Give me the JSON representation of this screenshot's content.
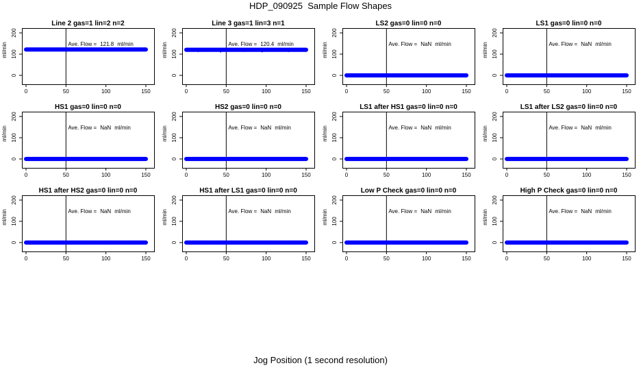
{
  "figure": {
    "title": "HDP_090925  Sample Flow Shapes",
    "xlabel": "Jog Position (1 second resolution)",
    "colors": {
      "points": "#0000ff",
      "axis": "#000000",
      "background": "#ffffff"
    }
  },
  "chart_data": [
    {
      "type": "scatter",
      "title": "Line 2 gas=1 lin=2 n=2",
      "ylabel": "ml/min",
      "annotation_label": "Ave. Flow =",
      "annotation_value": "121.8",
      "annotation_unit": "ml/min",
      "xlim": [
        0,
        150
      ],
      "ylim": [
        0,
        200
      ],
      "xticks": [
        0,
        50,
        100,
        150
      ],
      "xtick_labels": [
        "0",
        "50",
        "100",
        "150"
      ],
      "yticks": [
        0,
        100,
        200
      ],
      "ytick_labels": [
        "0",
        "100",
        "200"
      ],
      "vline_x": 50,
      "series": [
        {
          "name": "flow",
          "x_range": [
            0,
            150
          ],
          "step": 1,
          "y": 121.8,
          "outliers": []
        }
      ]
    },
    {
      "type": "scatter",
      "title": "Line 3 gas=1 lin=3 n=1",
      "ylabel": "ml/min",
      "annotation_label": "Ave. Flow =",
      "annotation_value": "120.4",
      "annotation_unit": "ml/min",
      "xlim": [
        0,
        150
      ],
      "ylim": [
        0,
        200
      ],
      "xticks": [
        0,
        50,
        100,
        150
      ],
      "xtick_labels": [
        "0",
        "50",
        "100",
        "150"
      ],
      "yticks": [
        0,
        100,
        200
      ],
      "ytick_labels": [
        "0",
        "100",
        "200"
      ],
      "vline_x": 50,
      "series": [
        {
          "name": "flow",
          "x_range": [
            0,
            150
          ],
          "step": 1,
          "y": 120.4,
          "outliers": [
            [
              15,
              112
            ],
            [
              43,
              110
            ],
            [
              72,
              113
            ],
            [
              95,
              111
            ],
            [
              128,
              112
            ]
          ]
        }
      ]
    },
    {
      "type": "scatter",
      "title": "LS2 gas=0 lin=0 n=0",
      "ylabel": "ml/min",
      "annotation_label": "Ave. Flow =",
      "annotation_value": "NaN",
      "annotation_unit": "ml/min",
      "xlim": [
        0,
        150
      ],
      "ylim": [
        0,
        200
      ],
      "xticks": [
        0,
        50,
        100,
        150
      ],
      "xtick_labels": [
        "0",
        "50",
        "100",
        "150"
      ],
      "yticks": [
        0,
        100,
        200
      ],
      "ytick_labels": [
        "0",
        "100",
        "200"
      ],
      "vline_x": 50,
      "series": [
        {
          "name": "flow",
          "x_range": [
            0,
            150
          ],
          "step": 1,
          "y": 0,
          "outliers": []
        }
      ]
    },
    {
      "type": "scatter",
      "title": "LS1 gas=0 lin=0 n=0",
      "ylabel": "ml/min",
      "annotation_label": "Ave. Flow =",
      "annotation_value": "NaN",
      "annotation_unit": "ml/min",
      "xlim": [
        0,
        150
      ],
      "ylim": [
        0,
        200
      ],
      "xticks": [
        0,
        50,
        100,
        150
      ],
      "xtick_labels": [
        "0",
        "50",
        "100",
        "150"
      ],
      "yticks": [
        0,
        100,
        200
      ],
      "ytick_labels": [
        "0",
        "100",
        "200"
      ],
      "vline_x": 50,
      "series": [
        {
          "name": "flow",
          "x_range": [
            0,
            150
          ],
          "step": 1,
          "y": 0,
          "outliers": []
        }
      ]
    },
    {
      "type": "scatter",
      "title": "HS1 gas=0 lin=0 n=0",
      "ylabel": "ml/min",
      "annotation_label": "Ave. Flow =",
      "annotation_value": "NaN",
      "annotation_unit": "ml/min",
      "xlim": [
        0,
        150
      ],
      "ylim": [
        0,
        200
      ],
      "xticks": [
        0,
        50,
        100,
        150
      ],
      "xtick_labels": [
        "0",
        "50",
        "100",
        "150"
      ],
      "yticks": [
        0,
        100,
        200
      ],
      "ytick_labels": [
        "0",
        "100",
        "200"
      ],
      "vline_x": 50,
      "series": [
        {
          "name": "flow",
          "x_range": [
            0,
            150
          ],
          "step": 1,
          "y": 0,
          "outliers": []
        }
      ]
    },
    {
      "type": "scatter",
      "title": "HS2 gas=0 lin=0 n=0",
      "ylabel": "ml/min",
      "annotation_label": "Ave. Flow =",
      "annotation_value": "NaN",
      "annotation_unit": "ml/min",
      "xlim": [
        0,
        150
      ],
      "ylim": [
        0,
        200
      ],
      "xticks": [
        0,
        50,
        100,
        150
      ],
      "xtick_labels": [
        "0",
        "50",
        "100",
        "150"
      ],
      "yticks": [
        0,
        100,
        200
      ],
      "ytick_labels": [
        "0",
        "100",
        "200"
      ],
      "vline_x": 50,
      "series": [
        {
          "name": "flow",
          "x_range": [
            0,
            150
          ],
          "step": 1,
          "y": 0,
          "outliers": []
        }
      ]
    },
    {
      "type": "scatter",
      "title": "LS1 after HS1 gas=0 lin=0 n=0",
      "ylabel": "ml/min",
      "annotation_label": "Ave. Flow =",
      "annotation_value": "NaN",
      "annotation_unit": "ml/min",
      "xlim": [
        0,
        150
      ],
      "ylim": [
        0,
        200
      ],
      "xticks": [
        0,
        50,
        100,
        150
      ],
      "xtick_labels": [
        "0",
        "50",
        "100",
        "150"
      ],
      "yticks": [
        0,
        100,
        200
      ],
      "ytick_labels": [
        "0",
        "100",
        "200"
      ],
      "vline_x": 50,
      "series": [
        {
          "name": "flow",
          "x_range": [
            0,
            150
          ],
          "step": 1,
          "y": 0,
          "outliers": []
        }
      ]
    },
    {
      "type": "scatter",
      "title": "LS1 after LS2 gas=0 lin=0 n=0",
      "ylabel": "ml/min",
      "annotation_label": "Ave. Flow =",
      "annotation_value": "NaN",
      "annotation_unit": "ml/min",
      "xlim": [
        0,
        150
      ],
      "ylim": [
        0,
        200
      ],
      "xticks": [
        0,
        50,
        100,
        150
      ],
      "xtick_labels": [
        "0",
        "50",
        "100",
        "150"
      ],
      "yticks": [
        0,
        100,
        200
      ],
      "ytick_labels": [
        "0",
        "100",
        "200"
      ],
      "vline_x": 50,
      "series": [
        {
          "name": "flow",
          "x_range": [
            0,
            150
          ],
          "step": 1,
          "y": 0,
          "outliers": []
        }
      ]
    },
    {
      "type": "scatter",
      "title": "HS1 after HS2 gas=0 lin=0 n=0",
      "ylabel": "ml/min",
      "annotation_label": "Ave. Flow =",
      "annotation_value": "NaN",
      "annotation_unit": "ml/min",
      "xlim": [
        0,
        150
      ],
      "ylim": [
        0,
        200
      ],
      "xticks": [
        0,
        50,
        100,
        150
      ],
      "xtick_labels": [
        "0",
        "50",
        "100",
        "150"
      ],
      "yticks": [
        0,
        100,
        200
      ],
      "ytick_labels": [
        "0",
        "100",
        "200"
      ],
      "vline_x": 50,
      "series": [
        {
          "name": "flow",
          "x_range": [
            0,
            150
          ],
          "step": 1,
          "y": 0,
          "outliers": []
        }
      ]
    },
    {
      "type": "scatter",
      "title": "HS1 after LS1 gas=0 lin=0 n=0",
      "ylabel": "ml/min",
      "annotation_label": "Ave. Flow =",
      "annotation_value": "NaN",
      "annotation_unit": "ml/min",
      "xlim": [
        0,
        150
      ],
      "ylim": [
        0,
        200
      ],
      "xticks": [
        0,
        50,
        100,
        150
      ],
      "xtick_labels": [
        "0",
        "50",
        "100",
        "150"
      ],
      "yticks": [
        0,
        100,
        200
      ],
      "ytick_labels": [
        "0",
        "100",
        "200"
      ],
      "vline_x": 50,
      "series": [
        {
          "name": "flow",
          "x_range": [
            0,
            150
          ],
          "step": 1,
          "y": 0,
          "outliers": []
        }
      ]
    },
    {
      "type": "scatter",
      "title": "Low P Check gas=0 lin=0 n=0",
      "ylabel": "ml/min",
      "annotation_label": "Ave. Flow =",
      "annotation_value": "NaN",
      "annotation_unit": "ml/min",
      "xlim": [
        0,
        150
      ],
      "ylim": [
        0,
        200
      ],
      "xticks": [
        0,
        50,
        100,
        150
      ],
      "xtick_labels": [
        "0",
        "50",
        "100",
        "150"
      ],
      "yticks": [
        0,
        100,
        200
      ],
      "ytick_labels": [
        "0",
        "100",
        "200"
      ],
      "vline_x": 50,
      "series": [
        {
          "name": "flow",
          "x_range": [
            0,
            150
          ],
          "step": 1,
          "y": 0,
          "outliers": []
        }
      ]
    },
    {
      "type": "scatter",
      "title": "High P Check gas=0 lin=0 n=0",
      "ylabel": "ml/min",
      "annotation_label": "Ave. Flow =",
      "annotation_value": "NaN",
      "annotation_unit": "ml/min",
      "xlim": [
        0,
        150
      ],
      "ylim": [
        0,
        200
      ],
      "xticks": [
        0,
        50,
        100,
        150
      ],
      "xtick_labels": [
        "0",
        "50",
        "100",
        "150"
      ],
      "yticks": [
        0,
        100,
        200
      ],
      "ytick_labels": [
        "0",
        "100",
        "200"
      ],
      "vline_x": 50,
      "series": [
        {
          "name": "flow",
          "x_range": [
            0,
            150
          ],
          "step": 1,
          "y": 0,
          "outliers": []
        }
      ]
    }
  ]
}
